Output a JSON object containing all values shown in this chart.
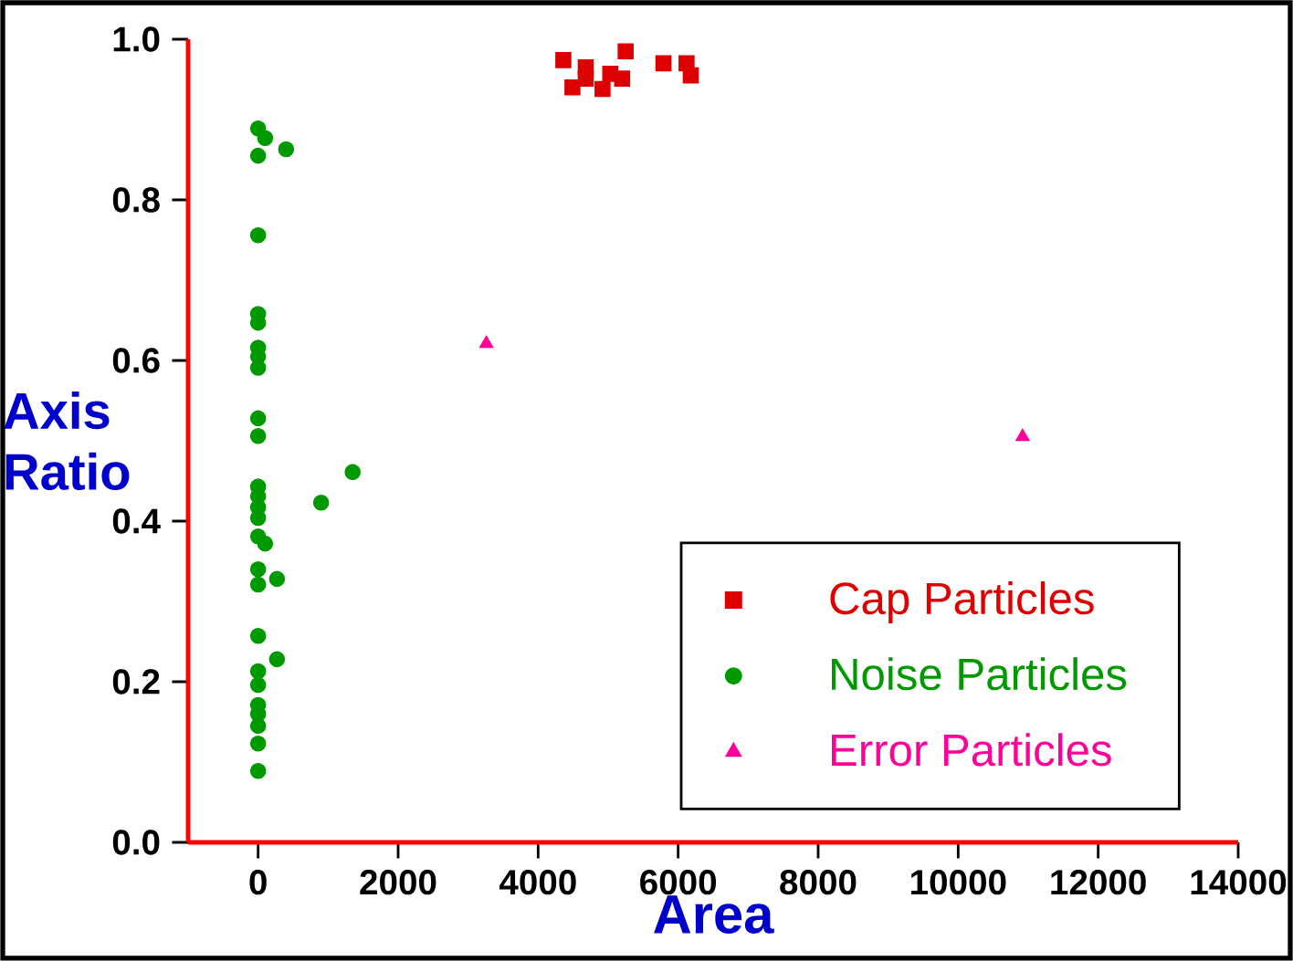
{
  "chart_data": {
    "type": "scatter",
    "xlabel": "Area",
    "ylabel": "Axis Ratio",
    "xlim": [
      -1000,
      14000
    ],
    "xticks": [
      0,
      2000,
      4000,
      6000,
      8000,
      10000,
      12000,
      14000
    ],
    "ylim": [
      0,
      1.0
    ],
    "yticks": [
      {
        "value": 0,
        "label": "0.0"
      },
      {
        "value": 0.2,
        "label": "0.2"
      },
      {
        "value": 0.4,
        "label": "0.4"
      },
      {
        "value": 0.6,
        "label": "0.6"
      },
      {
        "value": 0.8,
        "label": "0.8"
      },
      {
        "value": 1.0,
        "label": "1.0"
      }
    ],
    "grid": false,
    "legend": "bottom right",
    "series": [
      {
        "name": "Cap Particles",
        "color": "#dd0000",
        "marker": "square",
        "x": [
          4360,
          4680,
          4680,
          4490,
          4920,
          5030,
          5200,
          5250,
          5790,
          6120,
          6180
        ],
        "values": [
          0.974,
          0.965,
          0.951,
          0.94,
          0.938,
          0.957,
          0.951,
          0.985,
          0.97,
          0.97,
          0.955
        ]
      },
      {
        "name": "Noise Particles",
        "color": "#009900",
        "marker": "circle",
        "x": [
          0,
          100,
          400,
          0,
          0,
          0,
          0,
          0,
          0,
          0,
          0,
          0,
          1350,
          0,
          0,
          0,
          0,
          0,
          100,
          900,
          0,
          0,
          270,
          0,
          270,
          0,
          0,
          0,
          0,
          0,
          0,
          0
        ],
        "values": [
          0.889,
          0.877,
          0.863,
          0.855,
          0.756,
          0.658,
          0.647,
          0.616,
          0.605,
          0.591,
          0.528,
          0.506,
          0.461,
          0.443,
          0.431,
          0.417,
          0.404,
          0.381,
          0.372,
          0.423,
          0.34,
          0.321,
          0.328,
          0.257,
          0.228,
          0.213,
          0.196,
          0.171,
          0.16,
          0.145,
          0.123,
          0.089
        ]
      },
      {
        "name": "Error Particles",
        "color": "#ff0099",
        "marker": "triangle",
        "x": [
          3260,
          10920
        ],
        "values": [
          0.621,
          0.505
        ]
      }
    ]
  }
}
